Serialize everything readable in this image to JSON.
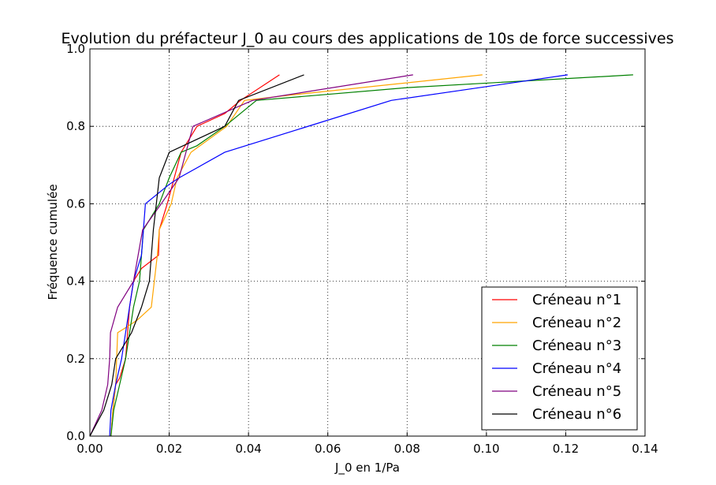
{
  "chart_data": {
    "type": "line",
    "title": "Evolution du préfacteur J_0 au cours des applications de 10s de force successives",
    "xlabel": "J_0 en 1/Pa",
    "ylabel": "Fréquence cumulée",
    "xlim": [
      0,
      0.14
    ],
    "ylim": [
      0,
      1.0
    ],
    "xticks": [
      "0.00",
      "0.02",
      "0.04",
      "0.06",
      "0.08",
      "0.10",
      "0.12",
      "0.14"
    ],
    "yticks": [
      "0.0",
      "0.2",
      "0.4",
      "0.6",
      "0.8",
      "1.0"
    ],
    "grid": true,
    "legend_position": "lower-right",
    "series": [
      {
        "name": "Créneau n°1",
        "color": "#ff0000",
        "x": [
          0.0053,
          0.0058,
          0.0065,
          0.0075,
          0.009,
          0.01,
          0.011,
          0.013,
          0.0173,
          0.0175,
          0.0195,
          0.023,
          0.027,
          0.034,
          0.038,
          0.0478
        ],
        "y": [
          0.0,
          0.067,
          0.133,
          0.15,
          0.2,
          0.333,
          0.4,
          0.433,
          0.467,
          0.533,
          0.6,
          0.733,
          0.8,
          0.833,
          0.867,
          0.933
        ]
      },
      {
        "name": "Créneau n°2",
        "color": "#ffa500",
        "x": [
          0.0053,
          0.0058,
          0.0065,
          0.007,
          0.0095,
          0.012,
          0.0155,
          0.017,
          0.0175,
          0.0205,
          0.022,
          0.0255,
          0.0345,
          0.039,
          0.05,
          0.099
        ],
        "y": [
          0.0,
          0.067,
          0.133,
          0.267,
          0.283,
          0.3,
          0.333,
          0.467,
          0.533,
          0.6,
          0.667,
          0.733,
          0.8,
          0.867,
          0.88,
          0.933
        ]
      },
      {
        "name": "Créneau n°3",
        "color": "#008000",
        "x": [
          0.0053,
          0.006,
          0.0075,
          0.009,
          0.011,
          0.0125,
          0.0135,
          0.0175,
          0.02,
          0.023,
          0.027,
          0.034,
          0.042,
          0.08,
          0.137
        ],
        "y": [
          0.0,
          0.067,
          0.133,
          0.2,
          0.333,
          0.4,
          0.533,
          0.6,
          0.667,
          0.733,
          0.75,
          0.8,
          0.867,
          0.9,
          0.933
        ]
      },
      {
        "name": "Créneau n°4",
        "color": "#0000ff",
        "x": [
          0.005,
          0.0053,
          0.0065,
          0.008,
          0.011,
          0.013,
          0.014,
          0.02,
          0.0225,
          0.034,
          0.076,
          0.1205
        ],
        "y": [
          0.0,
          0.067,
          0.133,
          0.2,
          0.4,
          0.467,
          0.6,
          0.65,
          0.667,
          0.733,
          0.867,
          0.933
        ]
      },
      {
        "name": "Créneau n°5",
        "color": "#800080",
        "x": [
          0.0,
          0.003,
          0.0045,
          0.005,
          0.0052,
          0.007,
          0.011,
          0.0133,
          0.018,
          0.0225,
          0.026,
          0.041,
          0.0815
        ],
        "y": [
          0.0,
          0.067,
          0.133,
          0.2,
          0.267,
          0.333,
          0.4,
          0.533,
          0.6,
          0.667,
          0.8,
          0.867,
          0.933
        ]
      },
      {
        "name": "Créneau n°6",
        "color": "#000000",
        "x": [
          0.0,
          0.0035,
          0.0055,
          0.0065,
          0.0105,
          0.013,
          0.015,
          0.016,
          0.0175,
          0.02,
          0.034,
          0.0375,
          0.054
        ],
        "y": [
          0.0,
          0.067,
          0.133,
          0.2,
          0.267,
          0.333,
          0.4,
          0.533,
          0.667,
          0.733,
          0.8,
          0.867,
          0.933
        ]
      }
    ]
  }
}
